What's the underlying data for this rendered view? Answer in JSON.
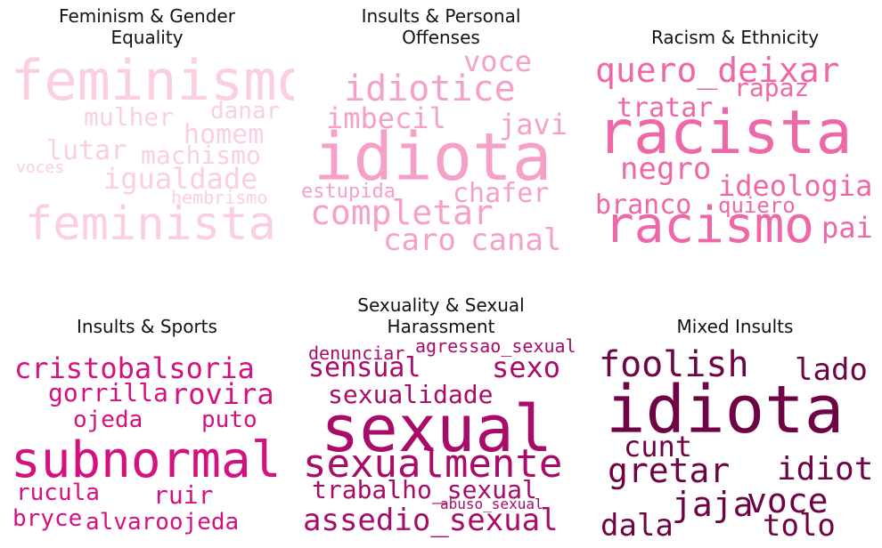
{
  "panels": [
    {
      "title_lines": [
        "Feminism & Gender",
        "Equality"
      ],
      "color": "#fbcfe3",
      "words": [
        {
          "text": "feminismo"
        },
        {
          "text": "mulher"
        },
        {
          "text": "danar"
        },
        {
          "text": "homem"
        },
        {
          "text": "lutar"
        },
        {
          "text": "machismo"
        },
        {
          "text": "voces"
        },
        {
          "text": "igualdade"
        },
        {
          "text": "hembrismo"
        },
        {
          "text": "feminista"
        }
      ]
    },
    {
      "title_lines": [
        "Insults & Personal",
        "Offenses"
      ],
      "color": "#f59fc9",
      "words": [
        {
          "text": "voce"
        },
        {
          "text": "idiotice"
        },
        {
          "text": "imbecil"
        },
        {
          "text": "javi"
        },
        {
          "text": "idiota"
        },
        {
          "text": "estupida"
        },
        {
          "text": "chafer"
        },
        {
          "text": "completar"
        },
        {
          "text": "caro"
        },
        {
          "text": "canal"
        }
      ]
    },
    {
      "title_lines": [
        "Racism & Ethnicity"
      ],
      "color": "#ee68a8",
      "words": [
        {
          "text": "quero_deixar"
        },
        {
          "text": "rapaz"
        },
        {
          "text": "tratar"
        },
        {
          "text": "racista"
        },
        {
          "text": "negro"
        },
        {
          "text": "ideologia"
        },
        {
          "text": "branco"
        },
        {
          "text": "quiero"
        },
        {
          "text": "racismo"
        },
        {
          "text": "pai"
        }
      ]
    },
    {
      "title_lines": [
        "Insults & Sports"
      ],
      "color": "#d4117e",
      "words": [
        {
          "text": "cristobalsoria"
        },
        {
          "text": "gorrilla"
        },
        {
          "text": "rovira"
        },
        {
          "text": "ojeda"
        },
        {
          "text": "puto"
        },
        {
          "text": "subnormal"
        },
        {
          "text": "rucula"
        },
        {
          "text": "ruir"
        },
        {
          "text": "bryce"
        },
        {
          "text": "alvaroojeda"
        }
      ]
    },
    {
      "title_lines": [
        "Sexuality & Sexual",
        "Harassment"
      ],
      "color": "#a80c68",
      "words": [
        {
          "text": "denunciar"
        },
        {
          "text": "agressao_sexual"
        },
        {
          "text": "sensual"
        },
        {
          "text": "sexo"
        },
        {
          "text": "sexualidade"
        },
        {
          "text": "sexual"
        },
        {
          "text": "sexualmente"
        },
        {
          "text": "trabalho_sexual"
        },
        {
          "text": "abuso_sexual"
        },
        {
          "text": "assedio_sexual"
        }
      ]
    },
    {
      "title_lines": [
        "Mixed Insults"
      ],
      "color": "#6e0445",
      "words": [
        {
          "text": "foolish"
        },
        {
          "text": "lado"
        },
        {
          "text": "idiota"
        },
        {
          "text": "cunt"
        },
        {
          "text": "gretar"
        },
        {
          "text": "idiot"
        },
        {
          "text": "jaja"
        },
        {
          "text": "voce"
        },
        {
          "text": "dala"
        },
        {
          "text": "tolo"
        }
      ]
    }
  ]
}
